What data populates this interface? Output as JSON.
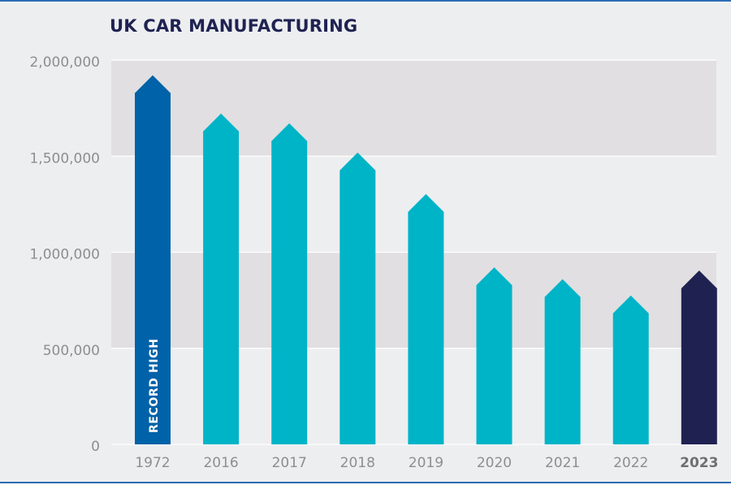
{
  "colors": {
    "background": "#edeef0",
    "band": "#e1dfe1",
    "grid": "#ffffff",
    "rule": "#2b6cb3",
    "title": "#1f2251",
    "axis_text": "#8e8e8e",
    "highlight_text": "#6f6f6f",
    "bar_default": "#00b4c8",
    "bar_record": "#0062a8",
    "bar_latest": "#1f2251",
    "bar_label": "#ffffff"
  },
  "chart_data": {
    "type": "bar",
    "title": "UK CAR MANUFACTURING",
    "xlabel": "",
    "ylabel": "",
    "ylim": [
      0,
      2000000
    ],
    "yticks": [
      0,
      500000,
      1000000,
      1500000,
      2000000
    ],
    "ytick_labels": [
      "0",
      "500,000",
      "1,000,000",
      "1,500,000",
      "2,000,000"
    ],
    "categories": [
      "1972",
      "2016",
      "2017",
      "2018",
      "2019",
      "2020",
      "2021",
      "2022",
      "2023"
    ],
    "values": [
      1921000,
      1722000,
      1671000,
      1519000,
      1303000,
      921000,
      860000,
      775000,
      905000
    ],
    "bar_styles": [
      "record",
      "default",
      "default",
      "default",
      "default",
      "default",
      "default",
      "default",
      "latest"
    ],
    "highlighted_category": "2023",
    "bar_annotations": [
      {
        "category": "1972",
        "text": "RECORD HIGH"
      }
    ]
  }
}
